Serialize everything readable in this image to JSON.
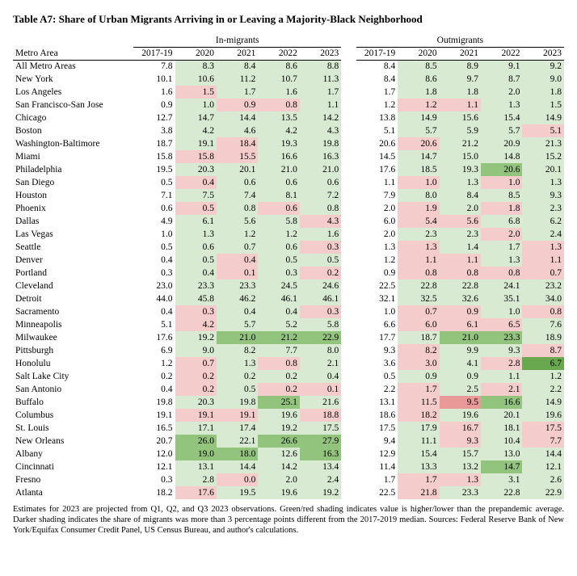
{
  "title": "Table A7: Share of Urban Migrants Arriving in or Leaving a Majority-Black Neighborhood",
  "group_headers": [
    "In-migrants",
    "Outmigrants"
  ],
  "col_headers": [
    "Metro Area",
    "2017-19",
    "2020",
    "2021",
    "2022",
    "2023",
    "2017-19",
    "2020",
    "2021",
    "2022",
    "2023"
  ],
  "caption": "Estimates for 2023 are projected from Q1, Q2, and Q3 2023 observations. Green/red shading indicates value is higher/lower than the prepandemic average.  Darker shading indicates the share of migrants was more than 3 percentage points different from the 2017-2019 median.  Sources: Federal Reserve Bank of New York/Equifax Consumer Credit Panel, US Census Bureau, and author's calculations.",
  "shade": {
    "none": "#ffffff",
    "lg": "#d9ead3",
    "dg": "#93c47d",
    "xg": "#6aa84f",
    "lr": "#f4cccc",
    "dr": "#ea9999"
  },
  "rows": [
    {
      "m": "All Metro Areas",
      "v": [
        "7.8",
        "8.3",
        "8.4",
        "8.6",
        "8.8",
        "8.4",
        "8.5",
        "8.9",
        "9.1",
        "9.2"
      ],
      "s": [
        "none",
        "lg",
        "lg",
        "lg",
        "lg",
        "none",
        "lg",
        "lg",
        "lg",
        "lg"
      ]
    },
    {
      "m": "New York",
      "v": [
        "10.1",
        "10.6",
        "11.2",
        "10.7",
        "11.3",
        "8.4",
        "8.6",
        "9.7",
        "8.7",
        "9.0"
      ],
      "s": [
        "none",
        "lg",
        "lg",
        "lg",
        "lg",
        "none",
        "lg",
        "lg",
        "lg",
        "lg"
      ]
    },
    {
      "m": "Los Angeles",
      "v": [
        "1.6",
        "1.5",
        "1.7",
        "1.6",
        "1.7",
        "1.7",
        "1.8",
        "1.8",
        "2.0",
        "1.8"
      ],
      "s": [
        "none",
        "lr",
        "lg",
        "lg",
        "lg",
        "none",
        "lg",
        "lg",
        "lg",
        "lg"
      ]
    },
    {
      "m": "San Francisco-San Jose",
      "v": [
        "0.9",
        "1.0",
        "0.9",
        "0.8",
        "1.1",
        "1.2",
        "1.2",
        "1.1",
        "1.3",
        "1.5"
      ],
      "s": [
        "none",
        "lg",
        "lr",
        "lr",
        "lg",
        "none",
        "lr",
        "lr",
        "lg",
        "lg"
      ]
    },
    {
      "m": "Chicago",
      "v": [
        "12.7",
        "14.7",
        "14.4",
        "13.5",
        "14.2",
        "13.8",
        "14.9",
        "15.6",
        "15.4",
        "14.9"
      ],
      "s": [
        "none",
        "lg",
        "lg",
        "lg",
        "lg",
        "none",
        "lg",
        "lg",
        "lg",
        "lg"
      ]
    },
    {
      "m": "Boston",
      "v": [
        "3.8",
        "4.2",
        "4.6",
        "4.2",
        "4.3",
        "5.1",
        "5.7",
        "5.9",
        "5.7",
        "5.1"
      ],
      "s": [
        "none",
        "lg",
        "lg",
        "lg",
        "lg",
        "none",
        "lg",
        "lg",
        "lg",
        "lr"
      ]
    },
    {
      "m": "Washington-Baltimore",
      "v": [
        "18.7",
        "19.1",
        "18.4",
        "19.3",
        "19.8",
        "20.6",
        "20.6",
        "21.2",
        "20.9",
        "21.3"
      ],
      "s": [
        "none",
        "lg",
        "lr",
        "lg",
        "lg",
        "none",
        "lr",
        "lg",
        "lg",
        "lg"
      ]
    },
    {
      "m": "Miami",
      "v": [
        "15.8",
        "15.8",
        "15.5",
        "16.6",
        "16.3",
        "14.5",
        "14.7",
        "15.0",
        "14.8",
        "15.2"
      ],
      "s": [
        "none",
        "lr",
        "lr",
        "lg",
        "lg",
        "none",
        "lg",
        "lg",
        "lg",
        "lg"
      ]
    },
    {
      "m": "Philadelphia",
      "v": [
        "19.5",
        "20.3",
        "20.1",
        "21.0",
        "21.0",
        "17.6",
        "18.5",
        "19.3",
        "20.6",
        "20.1"
      ],
      "s": [
        "none",
        "lg",
        "lg",
        "lg",
        "lg",
        "none",
        "lg",
        "lg",
        "dg",
        "lg"
      ]
    },
    {
      "m": "San Diego",
      "v": [
        "0.5",
        "0.4",
        "0.6",
        "0.6",
        "0.6",
        "1.1",
        "1.0",
        "1.3",
        "1.0",
        "1.3"
      ],
      "s": [
        "none",
        "lr",
        "lg",
        "lg",
        "lg",
        "none",
        "lr",
        "lg",
        "lr",
        "lg"
      ]
    },
    {
      "m": "Houston",
      "v": [
        "7.1",
        "7.5",
        "7.4",
        "8.1",
        "7.2",
        "7.9",
        "8.0",
        "8.4",
        "8.5",
        "9.3"
      ],
      "s": [
        "none",
        "lg",
        "lg",
        "lg",
        "lg",
        "none",
        "lg",
        "lg",
        "lg",
        "lg"
      ]
    },
    {
      "m": "Phoenix",
      "v": [
        "0.6",
        "0.5",
        "0.8",
        "0.6",
        "0.8",
        "2.0",
        "1.9",
        "2.0",
        "1.8",
        "2.3"
      ],
      "s": [
        "none",
        "lr",
        "lg",
        "lr",
        "lg",
        "none",
        "lr",
        "lg",
        "lr",
        "lg"
      ]
    },
    {
      "m": "Dallas",
      "v": [
        "4.9",
        "6.1",
        "5.6",
        "5.8",
        "4.3",
        "6.0",
        "5.4",
        "5.6",
        "6.8",
        "6.2"
      ],
      "s": [
        "none",
        "lg",
        "lg",
        "lg",
        "lr",
        "none",
        "lr",
        "lr",
        "lg",
        "lg"
      ]
    },
    {
      "m": "Las Vegas",
      "v": [
        "1.0",
        "1.3",
        "1.2",
        "1.2",
        "1.6",
        "2.0",
        "2.3",
        "2.3",
        "2.0",
        "2.4"
      ],
      "s": [
        "none",
        "lg",
        "lg",
        "lg",
        "lg",
        "none",
        "lg",
        "lg",
        "lr",
        "lg"
      ]
    },
    {
      "m": "Seattle",
      "v": [
        "0.5",
        "0.6",
        "0.7",
        "0.6",
        "0.3",
        "1.3",
        "1.3",
        "1.4",
        "1.7",
        "1.3"
      ],
      "s": [
        "none",
        "lg",
        "lg",
        "lg",
        "lr",
        "none",
        "lr",
        "lg",
        "lg",
        "lr"
      ]
    },
    {
      "m": "Denver",
      "v": [
        "0.4",
        "0.5",
        "0.4",
        "0.5",
        "0.5",
        "1.2",
        "1.1",
        "1.1",
        "1.3",
        "1.1"
      ],
      "s": [
        "none",
        "lg",
        "lr",
        "lg",
        "lg",
        "none",
        "lr",
        "lr",
        "lg",
        "lr"
      ]
    },
    {
      "m": "Portland",
      "v": [
        "0.3",
        "0.4",
        "0.1",
        "0.3",
        "0.2",
        "0.9",
        "0.8",
        "0.8",
        "0.8",
        "0.7"
      ],
      "s": [
        "none",
        "lg",
        "lr",
        "lg",
        "lr",
        "none",
        "lr",
        "lr",
        "lr",
        "lr"
      ]
    },
    {
      "m": "Cleveland",
      "v": [
        "23.0",
        "23.3",
        "23.3",
        "24.5",
        "24.6",
        "22.5",
        "22.8",
        "22.8",
        "24.1",
        "23.2"
      ],
      "s": [
        "none",
        "lg",
        "lg",
        "lg",
        "lg",
        "none",
        "lg",
        "lg",
        "lg",
        "lg"
      ]
    },
    {
      "m": "Detroit",
      "v": [
        "44.0",
        "45.8",
        "46.2",
        "46.1",
        "46.1",
        "32.1",
        "32.5",
        "32.6",
        "35.1",
        "34.0"
      ],
      "s": [
        "none",
        "lg",
        "lg",
        "lg",
        "lg",
        "none",
        "lg",
        "lg",
        "lg",
        "lg"
      ]
    },
    {
      "m": "Sacramento",
      "v": [
        "0.4",
        "0.3",
        "0.4",
        "0.4",
        "0.3",
        "1.0",
        "0.7",
        "0.9",
        "1.0",
        "0.8"
      ],
      "s": [
        "none",
        "lr",
        "lg",
        "lg",
        "lr",
        "none",
        "lr",
        "lr",
        "lg",
        "lr"
      ]
    },
    {
      "m": "Minneapolis",
      "v": [
        "5.1",
        "4.2",
        "5.7",
        "5.2",
        "5.8",
        "6.6",
        "6.0",
        "6.1",
        "6.5",
        "7.6"
      ],
      "s": [
        "none",
        "lr",
        "lg",
        "lg",
        "lg",
        "none",
        "lr",
        "lr",
        "lr",
        "lg"
      ]
    },
    {
      "m": "Milwaukee",
      "v": [
        "17.6",
        "19.2",
        "21.0",
        "21.2",
        "22.9",
        "17.7",
        "18.7",
        "21.0",
        "23.3",
        "18.9"
      ],
      "s": [
        "none",
        "lg",
        "dg",
        "dg",
        "dg",
        "none",
        "lg",
        "dg",
        "dg",
        "lg"
      ]
    },
    {
      "m": "Pittsburgh",
      "v": [
        "6.9",
        "9.0",
        "8.2",
        "7.7",
        "8.0",
        "9.3",
        "8.2",
        "9.9",
        "9.3",
        "8.7"
      ],
      "s": [
        "none",
        "lg",
        "lg",
        "lg",
        "lg",
        "none",
        "lr",
        "lg",
        "lg",
        "lr"
      ]
    },
    {
      "m": "Honolulu",
      "v": [
        "1.2",
        "0.7",
        "1.3",
        "0.8",
        "2.1",
        "3.6",
        "3.0",
        "4.1",
        "2.8",
        "6.7"
      ],
      "s": [
        "none",
        "lr",
        "lg",
        "lr",
        "lg",
        "none",
        "lr",
        "lg",
        "lr",
        "xg"
      ]
    },
    {
      "m": "Salt Lake City",
      "v": [
        "0.2",
        "0.2",
        "0.2",
        "0.2",
        "0.4",
        "0.5",
        "0.9",
        "0.9",
        "1.1",
        "1.2"
      ],
      "s": [
        "none",
        "lr",
        "lg",
        "lg",
        "lg",
        "none",
        "lg",
        "lg",
        "lg",
        "lg"
      ]
    },
    {
      "m": "San Antonio",
      "v": [
        "0.4",
        "0.2",
        "0.5",
        "0.2",
        "0.1",
        "2.2",
        "1.7",
        "2.5",
        "2.1",
        "2.2"
      ],
      "s": [
        "none",
        "lr",
        "lg",
        "lr",
        "lr",
        "none",
        "lr",
        "lg",
        "lr",
        "lg"
      ]
    },
    {
      "m": "Buffalo",
      "v": [
        "19.8",
        "20.3",
        "19.8",
        "25.1",
        "21.6",
        "13.1",
        "11.5",
        "9.5",
        "16.6",
        "14.9"
      ],
      "s": [
        "none",
        "lg",
        "lg",
        "dg",
        "lg",
        "none",
        "lr",
        "dr",
        "dg",
        "lg"
      ]
    },
    {
      "m": "Columbus",
      "v": [
        "19.1",
        "19.1",
        "19.1",
        "19.6",
        "18.8",
        "18.6",
        "18.2",
        "19.6",
        "20.1",
        "19.6"
      ],
      "s": [
        "none",
        "lr",
        "lr",
        "lg",
        "lr",
        "none",
        "lr",
        "lg",
        "lg",
        "lg"
      ]
    },
    {
      "m": "St. Louis",
      "v": [
        "16.5",
        "17.1",
        "17.4",
        "19.2",
        "17.5",
        "17.5",
        "17.9",
        "16.7",
        "18.1",
        "17.5"
      ],
      "s": [
        "none",
        "lg",
        "lg",
        "lg",
        "lg",
        "none",
        "lg",
        "lr",
        "lg",
        "lr"
      ]
    },
    {
      "m": "New Orleans",
      "v": [
        "20.7",
        "26.0",
        "22.1",
        "26.6",
        "27.9",
        "9.4",
        "11.1",
        "9.3",
        "10.4",
        "7.7"
      ],
      "s": [
        "none",
        "dg",
        "lg",
        "dg",
        "dg",
        "none",
        "lg",
        "lr",
        "lg",
        "lr"
      ]
    },
    {
      "m": "Albany",
      "v": [
        "12.0",
        "19.0",
        "18.0",
        "12.6",
        "16.3",
        "12.9",
        "15.4",
        "15.7",
        "13.0",
        "14.4"
      ],
      "s": [
        "none",
        "dg",
        "dg",
        "lg",
        "dg",
        "none",
        "lg",
        "lg",
        "lg",
        "lg"
      ]
    },
    {
      "m": "Cincinnati",
      "v": [
        "12.1",
        "13.1",
        "14.4",
        "14.2",
        "13.4",
        "11.4",
        "13.3",
        "13.2",
        "14.7",
        "12.1"
      ],
      "s": [
        "none",
        "lg",
        "lg",
        "lg",
        "lg",
        "none",
        "lg",
        "lg",
        "dg",
        "lg"
      ]
    },
    {
      "m": "Fresno",
      "v": [
        "0.3",
        "2.8",
        "0.0",
        "2.0",
        "2.4",
        "1.7",
        "1.7",
        "1.3",
        "3.1",
        "2.6"
      ],
      "s": [
        "none",
        "lg",
        "lr",
        "lg",
        "lg",
        "none",
        "lr",
        "lr",
        "lg",
        "lg"
      ]
    },
    {
      "m": "Atlanta",
      "v": [
        "18.2",
        "17.6",
        "19.5",
        "19.6",
        "19.2",
        "22.5",
        "21.8",
        "23.3",
        "22.8",
        "22.9"
      ],
      "s": [
        "none",
        "lr",
        "lg",
        "lg",
        "lg",
        "none",
        "lr",
        "lg",
        "lg",
        "lg"
      ]
    }
  ]
}
